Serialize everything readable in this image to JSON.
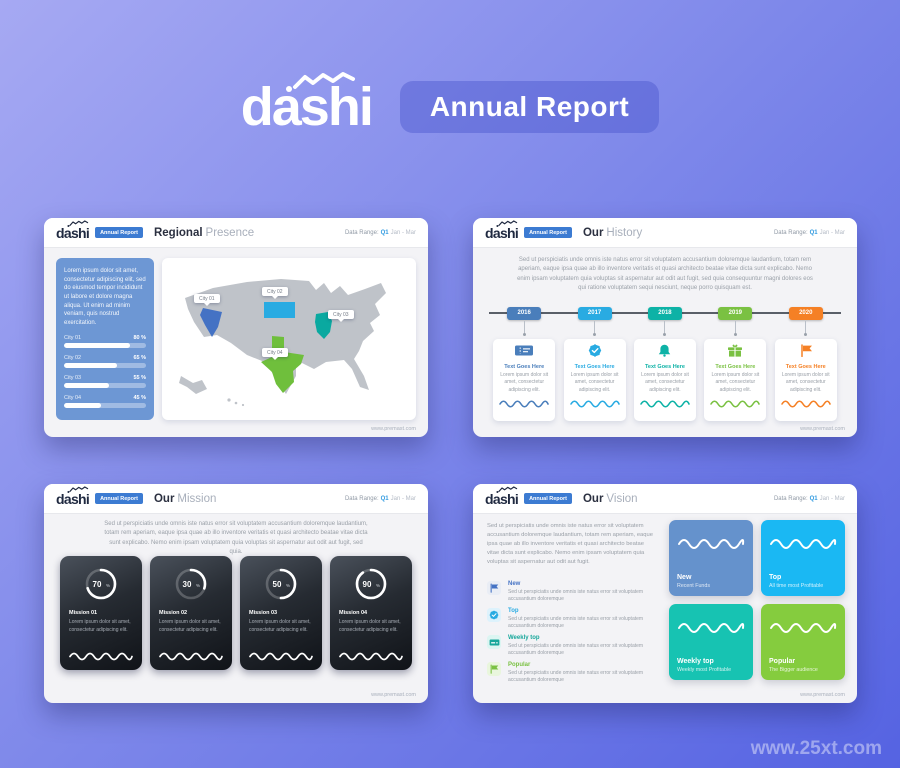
{
  "hero": {
    "logo": "dashi",
    "badge": "Annual Report"
  },
  "watermark": "www.25xt.com",
  "common": {
    "logo": "dashi",
    "badge": "Annual Report",
    "data_range_label": "Data Range:",
    "data_range_quarter": "Q1",
    "data_range_period": "Jan - Mar",
    "footer_url": "www.premast.com"
  },
  "slides": {
    "regional": {
      "title_strong": "Regional",
      "title_light": "Presence",
      "panel_color": "#6d97d4",
      "panel_text": "Lorem ipsum dolor sit amet, consectetur adipiscing elit, sed do eiusmod tempor incididunt ut labore et dolore magna aliqua. Ut enim ad minim veniam, quis nostrud exercitation.",
      "bars": [
        {
          "label": "City 01",
          "value": "80 %",
          "pct": 80
        },
        {
          "label": "City 02",
          "value": "65 %",
          "pct": 65
        },
        {
          "label": "City 03",
          "value": "55 %",
          "pct": 55
        },
        {
          "label": "City 04",
          "value": "45 %",
          "pct": 45
        }
      ],
      "map_states": [
        {
          "label": "City 01",
          "state": "Nevada",
          "color": "#4472c4"
        },
        {
          "label": "City 02",
          "state": "South Dakota",
          "color": "#29abe2"
        },
        {
          "label": "City 03",
          "state": "Illinois",
          "color": "#0aa9a0"
        },
        {
          "label": "City 04",
          "state": "Texas",
          "color": "#6fbf3c"
        }
      ]
    },
    "history": {
      "title_strong": "Our",
      "title_light": "History",
      "paragraph": "Sed ut perspiciatis unde omnis iste natus error sit voluptatem accusantium doloremque laudantium, totam rem aperiam, eaque ipsa quae ab illo inventore veritatis et quasi architecto beatae vitae dicta sunt explicabo. Nemo enim ipsam voluptatem quia voluptas sit aspernatur aut odit aut fugit, sed quia consequuntur magni dolores eos qui ratione voluptatem sequi nesciunt, neque porro quisquam est.",
      "milestones": [
        {
          "year": "2016",
          "color": "#4a7ebb",
          "icon": "ticket-icon",
          "title": "Text Goes Here",
          "text": "Lorem ipsum dolor sit amet, consectetur adipiscing elit."
        },
        {
          "year": "2017",
          "color": "#29abe2",
          "icon": "badge-check-icon",
          "title": "Text Goes Here",
          "text": "Lorem ipsum dolor sit amet, consectetur adipiscing elit."
        },
        {
          "year": "2018",
          "color": "#0db2a6",
          "icon": "bell-icon",
          "title": "Text Goes Here",
          "text": "Lorem ipsum dolor sit amet, consectetur adipiscing elit."
        },
        {
          "year": "2019",
          "color": "#7ac142",
          "icon": "gift-icon",
          "title": "Text Goes Here",
          "text": "Lorem ipsum dolor sit amet, consectetur adipiscing elit."
        },
        {
          "year": "2020",
          "color": "#f58025",
          "icon": "flag-icon",
          "title": "Text Goes Here",
          "text": "Lorem ipsum dolor sit amet, consectetur adipiscing elit."
        }
      ]
    },
    "mission": {
      "title_strong": "Our",
      "title_light": "Mission",
      "paragraph": "Sed ut perspiciatis unde omnis iste natus error sit voluptatem accusantium doloremque laudantium, totam rem aperiam, eaque ipsa quae ab illo inventore veritatis et quasi architecto beatae vitae dicta sunt explicabo. Nemo enim ipsam voluptatem quia voluptas sit aspernatur aut odit aut fugit, sed quia.",
      "cards": [
        {
          "pct": 70,
          "value": "70",
          "unit": "%",
          "title": "Mission 01",
          "text": "Lorem ipsum dolor sit amet, consectetur adipiscing elit."
        },
        {
          "pct": 30,
          "value": "30",
          "unit": "%",
          "title": "Mission 02",
          "text": "Lorem ipsum dolor sit amet, consectetur adipiscing elit."
        },
        {
          "pct": 50,
          "value": "50",
          "unit": "%",
          "title": "Mission 03",
          "text": "Lorem ipsum dolor sit amet, consectetur adipiscing elit."
        },
        {
          "pct": 90,
          "value": "90",
          "unit": "%",
          "title": "Mission 04",
          "text": "Lorem ipsum dolor sit amet, consectetur adipiscing elit."
        }
      ]
    },
    "vision": {
      "title_strong": "Our",
      "title_light": "Vision",
      "paragraph": "Sed ut perspiciatis unde omnis iste natus error sit voluptatem accusantium doloremque laudantium, totam rem aperiam, eaque ipsa quae ab illo inventore veritatis et quasi architecto beatae vitae dicta sunt explicabo. Nemo enim ipsam voluptatem quia voluptas sit aspernatur aut odit aut fugit.",
      "features": [
        {
          "title": "New",
          "color": "#4472c4",
          "bg": "#e9edf5",
          "icon": "flag-icon",
          "text": "Sed ut perspiciatis unde omnis iste natus error sit voluptatem accusantium doloremque"
        },
        {
          "title": "Top",
          "color": "#29abe2",
          "bg": "#ddf2fc",
          "icon": "badge-check-icon",
          "text": "Sed ut perspiciatis unde omnis iste natus error sit voluptatem accusantium doloremque"
        },
        {
          "title": "Weekly top",
          "color": "#17a79b",
          "bg": "#dcf5f2",
          "icon": "card-icon",
          "text": "Sed ut perspiciatis unde omnis iste natus error sit voluptatem accusantium doloremque"
        },
        {
          "title": "Popular",
          "color": "#7ac142",
          "bg": "#e9f6dd",
          "icon": "flag-icon",
          "text": "Sed ut perspiciatis unde omnis iste natus error sit voluptatem accusantium doloremque"
        }
      ],
      "cards": [
        {
          "title": "New",
          "subtitle": "Recent Funds",
          "color": "#6592cc"
        },
        {
          "title": "Top",
          "subtitle": "All time most Profitable",
          "color": "#1ab8f3"
        },
        {
          "title": "Weekly top",
          "subtitle": "Weekly most Profitable",
          "color": "#17c3b2"
        },
        {
          "title": "Popular",
          "subtitle": "The Bigger audience",
          "color": "#85cc3e"
        }
      ]
    }
  }
}
